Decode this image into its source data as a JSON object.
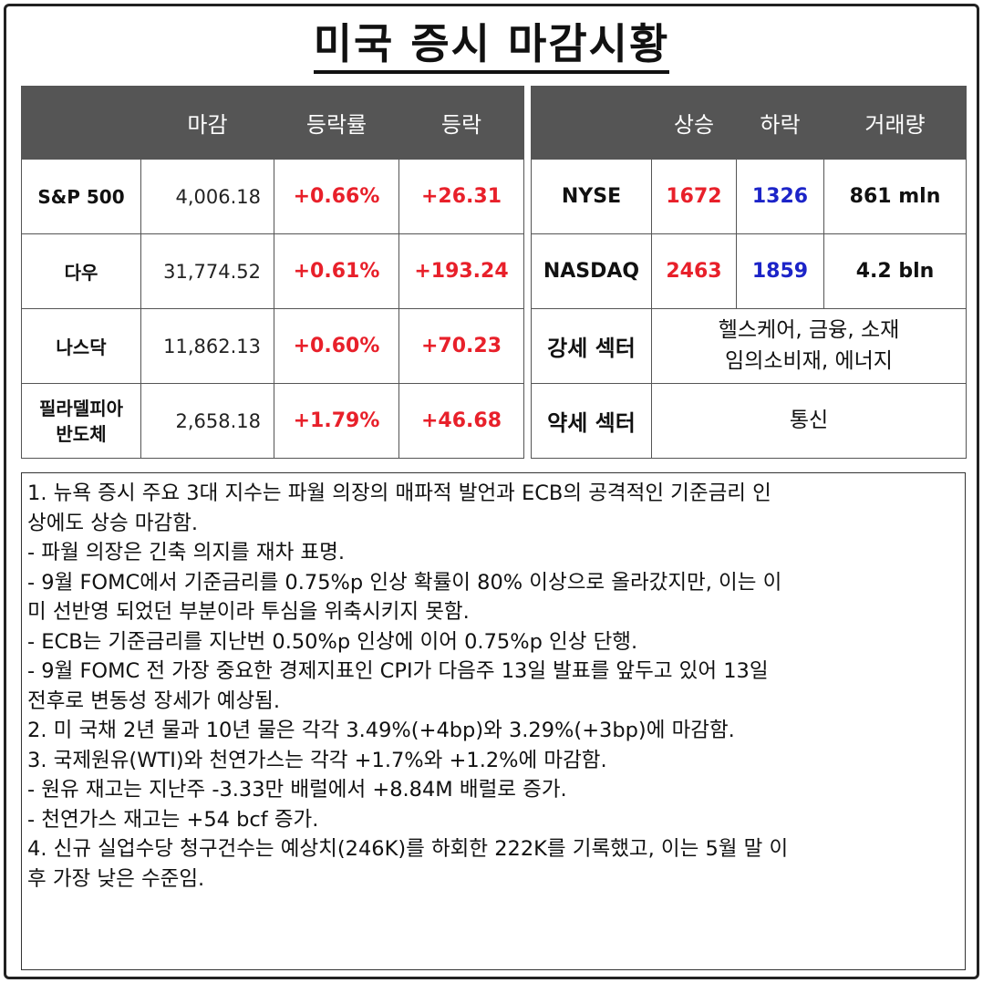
{
  "title": "미국 증시 마감시황",
  "index_table": {
    "headers": [
      "",
      "마감",
      "등락률",
      "등락"
    ],
    "rows": [
      {
        "name": "S&P 500",
        "close": "4,006.18",
        "pct": "+0.66%",
        "chg": "+26.31"
      },
      {
        "name": "다우",
        "close": "31,774.52",
        "pct": "+0.61%",
        "chg": "+193.24"
      },
      {
        "name": "나스닥",
        "close": "11,862.13",
        "pct": "+0.60%",
        "chg": "+70.23"
      },
      {
        "name_line1": "필라델피아",
        "name_line2": "반도체",
        "close": "2,658.18",
        "pct": "+1.79%",
        "chg": "+46.68"
      }
    ]
  },
  "market_table": {
    "headers": [
      "",
      "상승",
      "하락",
      "거래량"
    ],
    "rows": [
      {
        "exchange": "NYSE",
        "advance": "1672",
        "decline": "1326",
        "volume": "861 mln"
      },
      {
        "exchange": "NASDAQ",
        "advance": "2463",
        "decline": "1859",
        "volume": "4.2 bln"
      }
    ],
    "strong_sector_label": "강세 섹터",
    "strong_sector_line1": "헬스케어, 금융, 소재",
    "strong_sector_line2": "임의소비재, 에너지",
    "weak_sector_label": "약세 섹터",
    "weak_sector_value": "통신"
  },
  "notes": [
    "1. 뉴욕 증시 주요 3대 지수는 파월 의장의 매파적 발언과 ECB의 공격적인 기준금리 인",
    "상에도 상승 마감함.",
    "- 파월 의장은 긴축 의지를 재차 표명.",
    "- 9월 FOMC에서 기준금리를 0.75%p 인상 확률이 80% 이상으로 올라갔지만, 이는 이",
    "미 선반영 되었던 부분이라 투심을 위축시키지 못함.",
    "- ECB는 기준금리를 지난번 0.50%p 인상에 이어 0.75%p 인상 단행.",
    "- 9월 FOMC 전 가장 중요한 경제지표인 CPI가 다음주 13일 발표를 앞두고 있어 13일",
    "전후로 변동성 장세가 예상됨.",
    "2. 미 국채 2년 물과 10년 물은 각각 3.49%(+4bp)와 3.29%(+3bp)에 마감함.",
    "3. 국제원유(WTI)와 천연가스는 각각 +1.7%와 +1.2%에 마감함.",
    "- 원유 재고는 지난주 -3.33만 배럴에서 +8.84M 배럴로 증가.",
    "- 천연가스 재고는 +54 bcf 증가.",
    "4. 신규 실업수당 청구건수는 예상치(246K)를 하회한 222K를 기록했고, 이는 5월 말 이",
    "후 가장 낮은 수준임."
  ],
  "colors": {
    "header_bg": "#555555",
    "up_red": "#e8202a",
    "down_blue": "#1c24c8"
  }
}
